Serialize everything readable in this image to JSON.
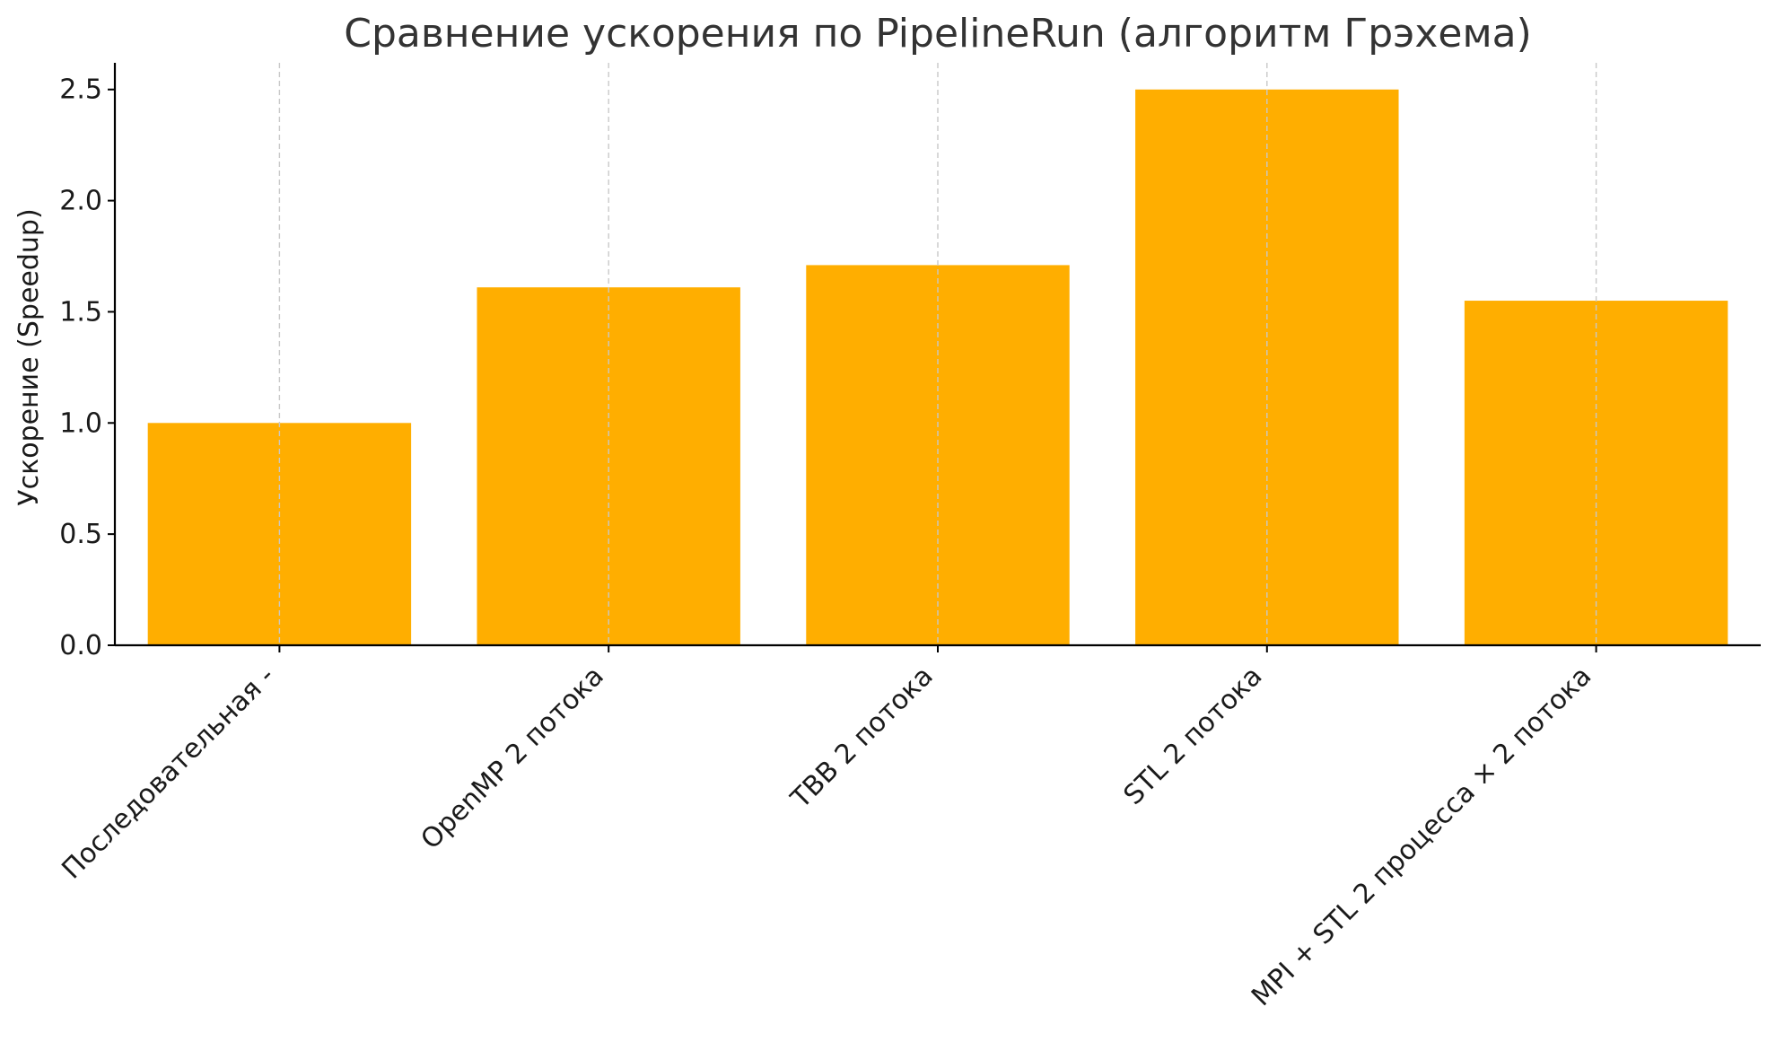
{
  "chart_data": {
    "type": "bar",
    "title": "Сравнение ускорения по PipelineRun (алгоритм Грэхема)",
    "xlabel": "",
    "ylabel": "Ускорение (Speedup)",
    "categories": [
      "Последовательная -",
      "OpenMP 2 потока",
      "TBB 2 потока",
      "STL 2 потока",
      "MPI + STL 2 процесса × 2 потока"
    ],
    "values": [
      1.0,
      1.61,
      1.71,
      2.5,
      1.55
    ],
    "ylim": [
      0,
      2.62
    ],
    "yticks": [
      0.0,
      0.5,
      1.0,
      1.5,
      2.0,
      2.5
    ],
    "ytick_labels": [
      "0.0",
      "0.5",
      "1.0",
      "1.5",
      "2.0",
      "2.5"
    ],
    "bar_color": "#FFAE00",
    "grid": "x-axis dashed, behind bars visible",
    "legend": "none",
    "x_tick_rotation": "45 degrees"
  }
}
